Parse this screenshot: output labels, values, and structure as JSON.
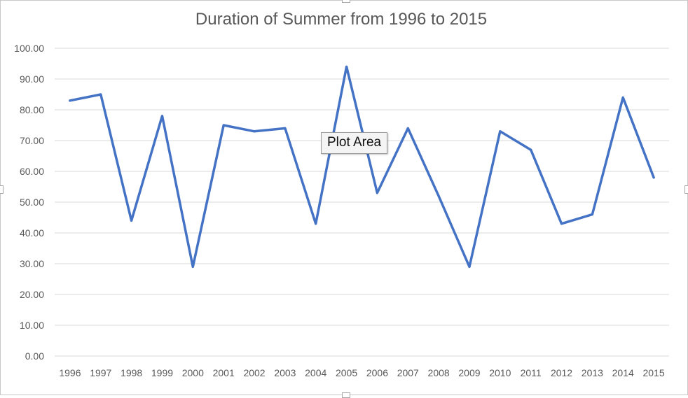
{
  "chart_data": {
    "type": "line",
    "title": "Duration of Summer from 1996 to 2015",
    "xlabel": "",
    "ylabel": "",
    "categories": [
      "1996",
      "1997",
      "1998",
      "1999",
      "2000",
      "2001",
      "2002",
      "2003",
      "2004",
      "2005",
      "2006",
      "2007",
      "2008",
      "2009",
      "2010",
      "2011",
      "2012",
      "2013",
      "2014",
      "2015"
    ],
    "series": [
      {
        "values": [
          83,
          85,
          44,
          78,
          29,
          75,
          73,
          74,
          43,
          94,
          53,
          74,
          52,
          29,
          73,
          67,
          43,
          46,
          84,
          58
        ],
        "color": "#4472c4"
      }
    ],
    "y_ticks": [
      "0.00",
      "10.00",
      "20.00",
      "30.00",
      "40.00",
      "50.00",
      "60.00",
      "70.00",
      "80.00",
      "90.00",
      "100.00"
    ],
    "ylim": [
      0,
      100
    ],
    "grid": true,
    "legend": "none"
  },
  "tooltip": {
    "text": "Plot Area"
  }
}
